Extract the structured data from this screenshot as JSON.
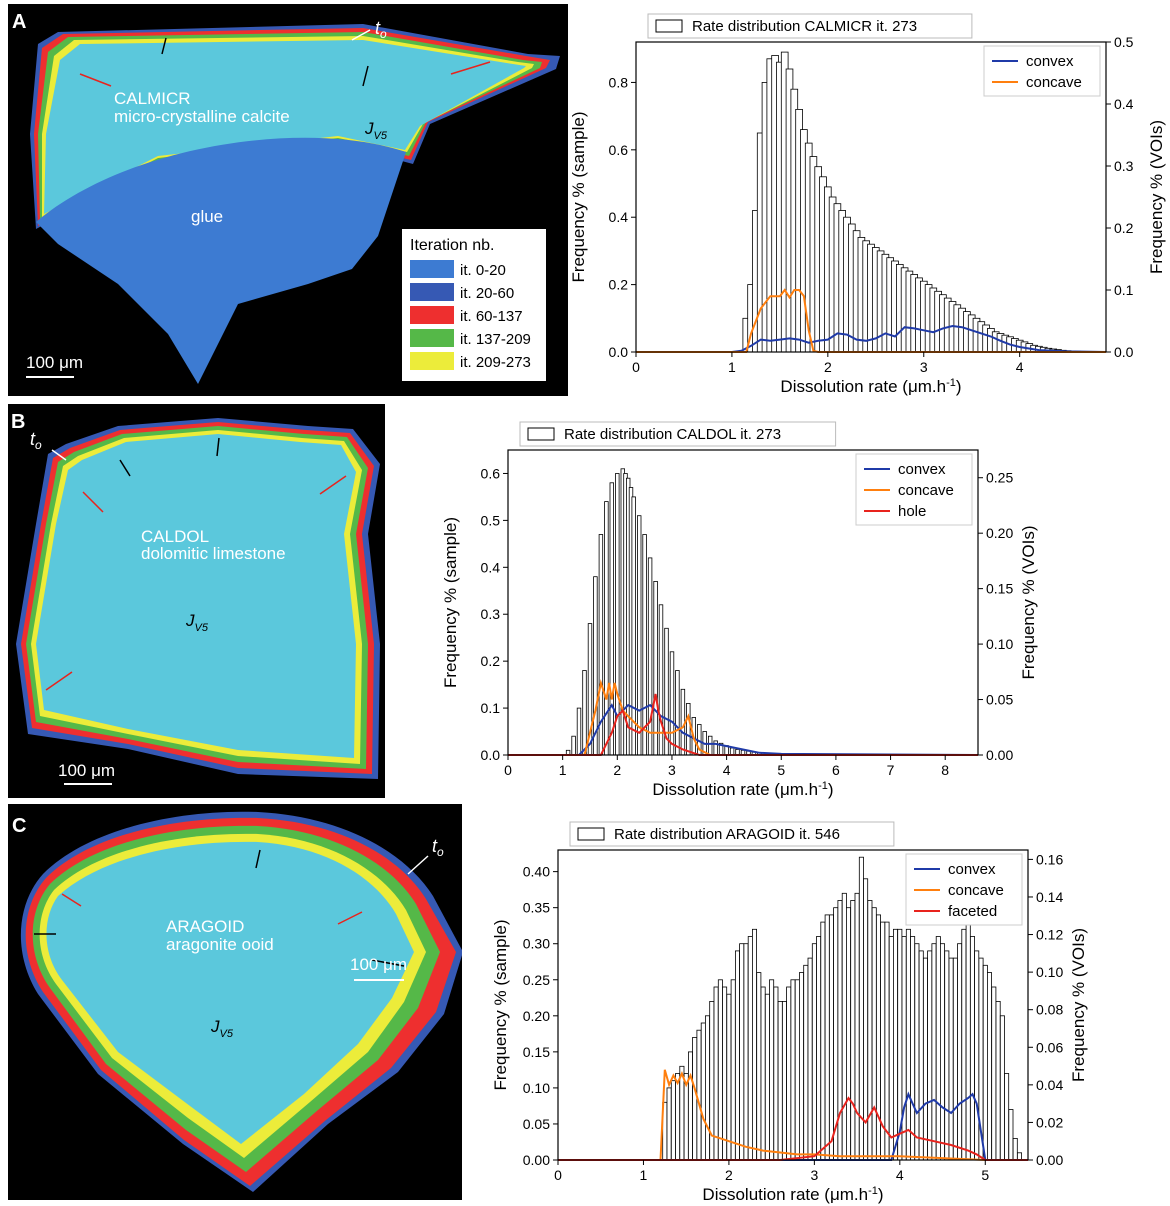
{
  "panels": [
    {
      "letter": "A",
      "sample_name": "CALMICR",
      "sample_desc": "micro-crystalline calcite",
      "glue_label": "glue",
      "jv5_main": "J",
      "jv5_sub": "V5",
      "t0_main": "t",
      "t0_sub": "o",
      "scale_label": "100 μm",
      "legend_title": "Iteration nb.",
      "legend_items": [
        {
          "label": "it. 0-20",
          "color": "#3d7bd2"
        },
        {
          "label": "it. 20-60",
          "color": "#3659b4"
        },
        {
          "label": "it. 60-137",
          "color": "#ee2f2f"
        },
        {
          "label": "it. 137-209",
          "color": "#55b848"
        },
        {
          "label": "it. 209-273",
          "color": "#ecec3a"
        }
      ]
    },
    {
      "letter": "B",
      "sample_name": "CALDOL",
      "sample_desc": "dolomitic limestone",
      "jv5_main": "J",
      "jv5_sub": "V5",
      "t0_main": "t",
      "t0_sub": "o",
      "scale_label": "100 μm"
    },
    {
      "letter": "C",
      "sample_name": "ARAGOID",
      "sample_desc": "aragonite ooid",
      "jv5_main": "J",
      "jv5_sub": "V5",
      "t0_main": "t",
      "t0_sub": "o",
      "scale_label": "100 μm"
    }
  ],
  "colors": {
    "interior": "#5bc8dc",
    "glue": "#3d7bd2",
    "outer_blue": "#3659b4",
    "red": "#ee2f2f",
    "green": "#55b848",
    "yellow": "#ecec3a",
    "convex": "#1f3aa8",
    "concave": "#ff7f0e",
    "hole": "#e8231d",
    "faceted": "#e8231d"
  },
  "chart_data": [
    {
      "type": "bar",
      "title": "Rate distribution CALMICR it. 273",
      "xlabel": "Dissolution rate (μm.h",
      "xlabel_sup": "-1",
      "xlabel_end": ")",
      "ylabel": "Frequency % (sample)",
      "y2label": "Frequency % (VOIs)",
      "xlim": [
        0,
        4.9
      ],
      "ylim": [
        0,
        0.92
      ],
      "y2lim": [
        0,
        0.5
      ],
      "xticks": [
        "0",
        "1",
        "2",
        "3",
        "4"
      ],
      "yticks": [
        "0.0",
        "0.2",
        "0.4",
        "0.6",
        "0.8"
      ],
      "y2ticks": [
        "0.0",
        "0.1",
        "0.2",
        "0.3",
        "0.4",
        "0.5"
      ],
      "hist_x": [
        1.15,
        1.2,
        1.25,
        1.3,
        1.35,
        1.4,
        1.45,
        1.5,
        1.55,
        1.6,
        1.65,
        1.7,
        1.75,
        1.8,
        1.85,
        1.9,
        1.95,
        2.0,
        2.05,
        2.1,
        2.15,
        2.2,
        2.25,
        2.3,
        2.35,
        2.4,
        2.45,
        2.5,
        2.55,
        2.6,
        2.65,
        2.7,
        2.75,
        2.8,
        2.85,
        2.9,
        2.95,
        3.0,
        3.05,
        3.1,
        3.15,
        3.2,
        3.25,
        3.3,
        3.35,
        3.4,
        3.45,
        3.5,
        3.55,
        3.6,
        3.65,
        3.7,
        3.75,
        3.8,
        3.85,
        3.9,
        3.95,
        4.0,
        4.05,
        4.1,
        4.15,
        4.2,
        4.25,
        4.3,
        4.35,
        4.4,
        4.45,
        4.5,
        4.55,
        4.6,
        4.65,
        4.7
      ],
      "hist_y": [
        0.1,
        0.2,
        0.42,
        0.65,
        0.8,
        0.87,
        0.88,
        0.86,
        0.89,
        0.84,
        0.78,
        0.72,
        0.66,
        0.62,
        0.58,
        0.55,
        0.52,
        0.49,
        0.46,
        0.44,
        0.42,
        0.4,
        0.38,
        0.36,
        0.34,
        0.33,
        0.32,
        0.31,
        0.3,
        0.29,
        0.28,
        0.27,
        0.26,
        0.25,
        0.24,
        0.23,
        0.22,
        0.21,
        0.2,
        0.19,
        0.18,
        0.17,
        0.16,
        0.15,
        0.14,
        0.13,
        0.12,
        0.11,
        0.1,
        0.09,
        0.08,
        0.07,
        0.06,
        0.055,
        0.05,
        0.045,
        0.04,
        0.035,
        0.03,
        0.025,
        0.02,
        0.017,
        0.014,
        0.011,
        0.009,
        0.007,
        0.005,
        0.004,
        0.003,
        0.002,
        0.0015,
        0.001
      ],
      "series": [
        {
          "name": "convex",
          "color_key": "convex",
          "x": [
            0,
            1.0,
            1.1,
            1.2,
            1.3,
            1.4,
            1.5,
            1.6,
            1.7,
            1.8,
            1.9,
            2.0,
            2.1,
            2.2,
            2.3,
            2.4,
            2.5,
            2.6,
            2.7,
            2.8,
            2.9,
            3.0,
            3.1,
            3.2,
            3.3,
            3.4,
            3.5,
            3.6,
            3.7,
            3.8,
            3.9,
            4.0,
            4.2,
            4.5,
            4.9
          ],
          "y": [
            0,
            0,
            0.002,
            0.01,
            0.02,
            0.018,
            0.02,
            0.022,
            0.02,
            0.015,
            0.018,
            0.02,
            0.03,
            0.028,
            0.02,
            0.018,
            0.022,
            0.03,
            0.025,
            0.04,
            0.038,
            0.035,
            0.032,
            0.038,
            0.042,
            0.04,
            0.035,
            0.03,
            0.025,
            0.018,
            0.012,
            0.008,
            0.003,
            0.001,
            0
          ]
        },
        {
          "name": "concave",
          "color_key": "concave",
          "x": [
            0,
            1.15,
            1.2,
            1.3,
            1.4,
            1.5,
            1.55,
            1.6,
            1.65,
            1.7,
            1.75,
            1.8,
            1.85,
            1.9,
            2.0,
            4.9
          ],
          "y": [
            0,
            0,
            0.03,
            0.07,
            0.09,
            0.09,
            0.1,
            0.088,
            0.1,
            0.1,
            0.09,
            0.035,
            0.002,
            0,
            0,
            0
          ]
        }
      ]
    },
    {
      "type": "bar",
      "title": "Rate distribution CALDOL it. 273",
      "xlabel": "Dissolution rate (μm.h",
      "xlabel_sup": "-1",
      "xlabel_end": ")",
      "ylabel": "Frequency % (sample)",
      "y2label": "Frequency % (VOIs)",
      "xlim": [
        0,
        8.6
      ],
      "ylim": [
        0,
        0.65
      ],
      "y2lim": [
        0,
        0.275
      ],
      "xticks": [
        "0",
        "1",
        "2",
        "3",
        "4",
        "5",
        "6",
        "7",
        "8"
      ],
      "yticks": [
        "0.0",
        "0.1",
        "0.2",
        "0.3",
        "0.4",
        "0.5",
        "0.6"
      ],
      "y2ticks": [
        "0.00",
        "0.05",
        "0.10",
        "0.15",
        "0.20",
        "0.25"
      ],
      "hist_x": [
        1.1,
        1.2,
        1.3,
        1.4,
        1.5,
        1.6,
        1.7,
        1.8,
        1.9,
        2.0,
        2.1,
        2.15,
        2.2,
        2.25,
        2.3,
        2.4,
        2.5,
        2.6,
        2.7,
        2.8,
        2.9,
        3.0,
        3.1,
        3.2,
        3.3,
        3.4,
        3.5,
        3.6,
        3.7,
        3.8,
        3.9,
        4.0,
        4.1,
        4.2,
        4.3,
        4.4,
        4.5,
        4.6,
        4.8,
        5.0,
        5.5,
        6.0
      ],
      "hist_y": [
        0.01,
        0.04,
        0.1,
        0.18,
        0.28,
        0.38,
        0.47,
        0.54,
        0.58,
        0.6,
        0.61,
        0.6,
        0.59,
        0.57,
        0.55,
        0.51,
        0.47,
        0.42,
        0.37,
        0.32,
        0.27,
        0.22,
        0.18,
        0.14,
        0.11,
        0.08,
        0.065,
        0.05,
        0.04,
        0.03,
        0.025,
        0.02,
        0.015,
        0.012,
        0.01,
        0.008,
        0.006,
        0.005,
        0.004,
        0.003,
        0.002,
        0.001
      ],
      "series": [
        {
          "name": "convex",
          "color_key": "convex",
          "x": [
            0,
            1.3,
            1.5,
            1.7,
            1.9,
            2.0,
            2.2,
            2.4,
            2.6,
            2.8,
            3.0,
            3.2,
            3.4,
            3.6,
            3.8,
            4.0,
            4.2,
            4.4,
            4.6,
            5.0,
            8.6
          ],
          "y": [
            0,
            0,
            0.01,
            0.03,
            0.045,
            0.035,
            0.045,
            0.04,
            0.045,
            0.035,
            0.03,
            0.02,
            0.015,
            0.01,
            0.01,
            0.008,
            0.006,
            0.004,
            0.002,
            0.001,
            0
          ]
        },
        {
          "name": "concave",
          "color_key": "concave",
          "x": [
            0,
            1.4,
            1.6,
            1.7,
            1.8,
            1.85,
            1.9,
            1.95,
            2.0,
            2.1,
            2.2,
            2.4,
            2.6,
            2.8,
            3.0,
            3.2,
            3.3,
            3.4,
            3.5,
            3.7,
            8.6
          ],
          "y": [
            0,
            0,
            0.04,
            0.065,
            0.05,
            0.065,
            0.05,
            0.065,
            0.055,
            0.04,
            0.035,
            0.025,
            0.02,
            0.02,
            0.02,
            0.025,
            0.035,
            0.015,
            0.005,
            0,
            0
          ]
        },
        {
          "name": "hole",
          "color_key": "hole",
          "x": [
            0,
            1.7,
            1.9,
            2.0,
            2.1,
            2.2,
            2.4,
            2.6,
            2.7,
            2.75,
            2.8,
            2.9,
            3.0,
            3.2,
            3.5,
            8.6
          ],
          "y": [
            0,
            0,
            0.02,
            0.035,
            0.04,
            0.025,
            0.02,
            0.03,
            0.055,
            0.04,
            0.03,
            0.015,
            0.01,
            0.005,
            0,
            0
          ]
        }
      ]
    },
    {
      "type": "bar",
      "title": "Rate distribution ARAGOID it. 546",
      "xlabel": "Dissolution rate (μm.h",
      "xlabel_sup": "-1",
      "xlabel_end": ")",
      "ylabel": "Frequency % (sample)",
      "y2label": "Frequency % (VOIs)",
      "xlim": [
        0,
        5.5
      ],
      "ylim": [
        0,
        0.43
      ],
      "y2lim": [
        0,
        0.165
      ],
      "xticks": [
        "0",
        "1",
        "2",
        "3",
        "4",
        "5"
      ],
      "yticks": [
        "0.00",
        "0.05",
        "0.10",
        "0.15",
        "0.20",
        "0.25",
        "0.30",
        "0.35",
        "0.40"
      ],
      "y2ticks": [
        "0.00",
        "0.02",
        "0.04",
        "0.06",
        "0.08",
        "0.10",
        "0.12",
        "0.14",
        "0.16"
      ],
      "hist_x": [
        1.25,
        1.3,
        1.35,
        1.4,
        1.45,
        1.5,
        1.55,
        1.6,
        1.65,
        1.7,
        1.75,
        1.8,
        1.85,
        1.9,
        1.95,
        2.0,
        2.05,
        2.1,
        2.15,
        2.2,
        2.25,
        2.3,
        2.35,
        2.4,
        2.45,
        2.5,
        2.55,
        2.6,
        2.65,
        2.7,
        2.75,
        2.8,
        2.85,
        2.9,
        2.95,
        3.0,
        3.05,
        3.1,
        3.15,
        3.2,
        3.25,
        3.3,
        3.35,
        3.4,
        3.45,
        3.5,
        3.55,
        3.6,
        3.65,
        3.7,
        3.75,
        3.8,
        3.85,
        3.9,
        3.95,
        4.0,
        4.05,
        4.1,
        4.15,
        4.2,
        4.25,
        4.3,
        4.35,
        4.4,
        4.45,
        4.5,
        4.55,
        4.6,
        4.65,
        4.7,
        4.75,
        4.8,
        4.85,
        4.9,
        4.95,
        5.0,
        5.05,
        5.1,
        5.15,
        5.2,
        5.25,
        5.3,
        5.35,
        5.4
      ],
      "hist_y": [
        0.08,
        0.1,
        0.11,
        0.12,
        0.13,
        0.12,
        0.15,
        0.17,
        0.18,
        0.19,
        0.2,
        0.22,
        0.24,
        0.25,
        0.24,
        0.23,
        0.25,
        0.29,
        0.3,
        0.3,
        0.31,
        0.32,
        0.26,
        0.24,
        0.23,
        0.25,
        0.24,
        0.22,
        0.22,
        0.24,
        0.25,
        0.25,
        0.26,
        0.27,
        0.28,
        0.3,
        0.31,
        0.33,
        0.34,
        0.34,
        0.35,
        0.36,
        0.37,
        0.35,
        0.36,
        0.37,
        0.42,
        0.39,
        0.36,
        0.35,
        0.34,
        0.33,
        0.33,
        0.31,
        0.32,
        0.32,
        0.31,
        0.32,
        0.31,
        0.3,
        0.29,
        0.28,
        0.29,
        0.3,
        0.31,
        0.3,
        0.29,
        0.28,
        0.28,
        0.3,
        0.32,
        0.33,
        0.31,
        0.29,
        0.28,
        0.27,
        0.26,
        0.24,
        0.22,
        0.2,
        0.12,
        0.07,
        0.03,
        0.01
      ],
      "series": [
        {
          "name": "convex",
          "color_key": "convex",
          "x": [
            0,
            3.9,
            4.0,
            4.05,
            4.1,
            4.15,
            4.2,
            4.3,
            4.4,
            4.5,
            4.6,
            4.7,
            4.8,
            4.85,
            4.9,
            4.95,
            5.0,
            5.5
          ],
          "y": [
            0,
            0,
            0.015,
            0.028,
            0.035,
            0.03,
            0.025,
            0.03,
            0.032,
            0.028,
            0.025,
            0.03,
            0.033,
            0.035,
            0.03,
            0.015,
            0,
            0
          ]
        },
        {
          "name": "concave",
          "color_key": "concave",
          "x": [
            0,
            1.2,
            1.25,
            1.3,
            1.35,
            1.4,
            1.45,
            1.5,
            1.55,
            1.6,
            1.7,
            1.8,
            2.0,
            2.2,
            2.4,
            2.6,
            2.8,
            3.0,
            3.3,
            3.6,
            4.0,
            4.5,
            5.0,
            5.5
          ],
          "y": [
            0,
            0,
            0.048,
            0.04,
            0.045,
            0.041,
            0.046,
            0.04,
            0.045,
            0.038,
            0.022,
            0.013,
            0.01,
            0.007,
            0.005,
            0.004,
            0.003,
            0.003,
            0.002,
            0.002,
            0.002,
            0.001,
            0,
            0
          ]
        },
        {
          "name": "faceted",
          "color_key": "faceted",
          "x": [
            0,
            2.6,
            3.0,
            3.2,
            3.3,
            3.4,
            3.45,
            3.5,
            3.6,
            3.7,
            3.8,
            3.9,
            4.0,
            4.1,
            4.2,
            4.4,
            4.6,
            4.8,
            4.9,
            5.0,
            5.5
          ],
          "y": [
            0,
            0,
            0.002,
            0.01,
            0.025,
            0.033,
            0.03,
            0.025,
            0.02,
            0.028,
            0.018,
            0.012,
            0.014,
            0.016,
            0.012,
            0.01,
            0.008,
            0.005,
            0.003,
            0,
            0
          ]
        }
      ]
    }
  ]
}
